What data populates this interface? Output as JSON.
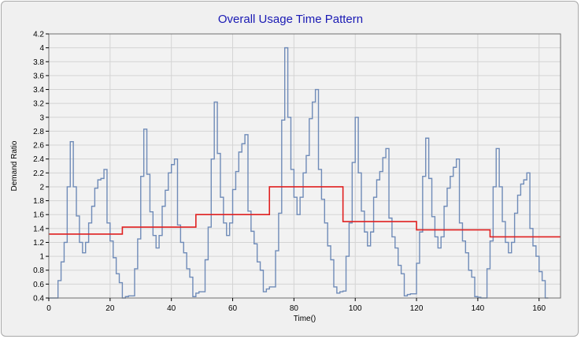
{
  "chart_data": {
    "type": "line",
    "title": "Overall Usage Time Pattern",
    "xlabel": "Time()",
    "ylabel": "Demand Ratio",
    "xlim": [
      0,
      167
    ],
    "ylim": [
      0.4,
      4.2
    ],
    "x_ticks": [
      0,
      20,
      40,
      60,
      80,
      100,
      120,
      140,
      160
    ],
    "y_ticks": [
      0.4,
      0.6,
      0.8,
      1,
      1.2,
      1.4,
      1.6,
      1.8,
      2,
      2.2,
      2.4,
      2.6,
      2.8,
      3,
      3.2,
      3.4,
      3.6,
      3.8,
      4,
      4.2
    ],
    "grid": true,
    "line_style": "step",
    "series": [
      {
        "color": "#6f8bb8",
        "values": [
          0.4,
          0.4,
          0.4,
          0.65,
          0.92,
          1.2,
          2.0,
          2.65,
          2.0,
          1.58,
          1.2,
          1.05,
          1.2,
          1.48,
          1.72,
          1.98,
          2.1,
          2.12,
          2.25,
          1.48,
          1.22,
          0.98,
          0.75,
          0.62,
          0.4,
          0.42,
          0.43,
          0.43,
          0.82,
          1.25,
          2.15,
          2.83,
          2.18,
          1.64,
          1.3,
          1.12,
          1.3,
          1.72,
          1.95,
          2.2,
          2.32,
          2.4,
          1.45,
          1.2,
          1.05,
          0.82,
          0.7,
          0.42,
          0.47,
          0.49,
          0.49,
          0.95,
          1.42,
          2.4,
          3.22,
          2.48,
          1.85,
          1.48,
          1.3,
          1.48,
          1.96,
          2.22,
          2.5,
          2.62,
          2.75,
          1.65,
          1.36,
          1.18,
          0.92,
          0.8,
          0.49,
          0.53,
          0.56,
          0.56,
          1.08,
          1.62,
          2.96,
          4.0,
          3.0,
          2.25,
          1.85,
          1.6,
          1.85,
          2.2,
          2.45,
          2.98,
          3.22,
          3.4,
          2.25,
          1.82,
          1.48,
          1.15,
          0.95,
          0.56,
          0.47,
          0.49,
          0.5,
          1.0,
          1.48,
          2.35,
          3.0,
          2.2,
          1.65,
          1.35,
          1.15,
          1.35,
          1.85,
          2.1,
          2.22,
          2.42,
          2.55,
          1.55,
          1.28,
          1.12,
          0.87,
          0.75,
          0.43,
          0.45,
          0.46,
          0.46,
          0.9,
          1.35,
          2.15,
          2.7,
          2.12,
          1.57,
          1.28,
          1.12,
          1.28,
          1.72,
          1.98,
          2.15,
          2.28,
          2.4,
          1.48,
          1.22,
          1.05,
          0.8,
          0.7,
          0.42,
          0.41,
          0.4,
          0.4,
          0.82,
          1.22,
          2.0,
          2.55,
          2.0,
          1.5,
          1.2,
          1.05,
          1.2,
          1.62,
          1.88,
          2.04,
          2.1,
          2.2,
          1.4,
          1.15,
          1.0,
          0.78,
          0.65,
          0.4
        ]
      },
      {
        "color": "#e02020",
        "values": [
          1.32,
          1.32,
          1.32,
          1.32,
          1.32,
          1.32,
          1.32,
          1.32,
          1.32,
          1.32,
          1.32,
          1.32,
          1.32,
          1.32,
          1.32,
          1.32,
          1.32,
          1.32,
          1.32,
          1.32,
          1.32,
          1.32,
          1.32,
          1.32,
          1.42,
          1.42,
          1.42,
          1.42,
          1.42,
          1.42,
          1.42,
          1.42,
          1.42,
          1.42,
          1.42,
          1.42,
          1.42,
          1.42,
          1.42,
          1.42,
          1.42,
          1.42,
          1.42,
          1.42,
          1.42,
          1.42,
          1.42,
          1.42,
          1.6,
          1.6,
          1.6,
          1.6,
          1.6,
          1.6,
          1.6,
          1.6,
          1.6,
          1.6,
          1.6,
          1.6,
          1.6,
          1.6,
          1.6,
          1.6,
          1.6,
          1.6,
          1.6,
          1.6,
          1.6,
          1.6,
          1.6,
          1.6,
          2.0,
          2.0,
          2.0,
          2.0,
          2.0,
          2.0,
          2.0,
          2.0,
          2.0,
          2.0,
          2.0,
          2.0,
          2.0,
          2.0,
          2.0,
          2.0,
          2.0,
          2.0,
          2.0,
          2.0,
          2.0,
          2.0,
          2.0,
          2.0,
          1.5,
          1.5,
          1.5,
          1.5,
          1.5,
          1.5,
          1.5,
          1.5,
          1.5,
          1.5,
          1.5,
          1.5,
          1.5,
          1.5,
          1.5,
          1.5,
          1.5,
          1.5,
          1.5,
          1.5,
          1.5,
          1.5,
          1.5,
          1.5,
          1.38,
          1.38,
          1.38,
          1.38,
          1.38,
          1.38,
          1.38,
          1.38,
          1.38,
          1.38,
          1.38,
          1.38,
          1.38,
          1.38,
          1.38,
          1.38,
          1.38,
          1.38,
          1.38,
          1.38,
          1.38,
          1.38,
          1.38,
          1.38,
          1.28,
          1.28,
          1.28,
          1.28,
          1.28,
          1.28,
          1.28,
          1.28,
          1.28,
          1.28,
          1.28,
          1.28,
          1.28,
          1.28,
          1.28,
          1.28,
          1.28,
          1.28,
          1.28,
          1.28,
          1.28,
          1.28,
          1.28,
          1.28
        ]
      }
    ]
  }
}
